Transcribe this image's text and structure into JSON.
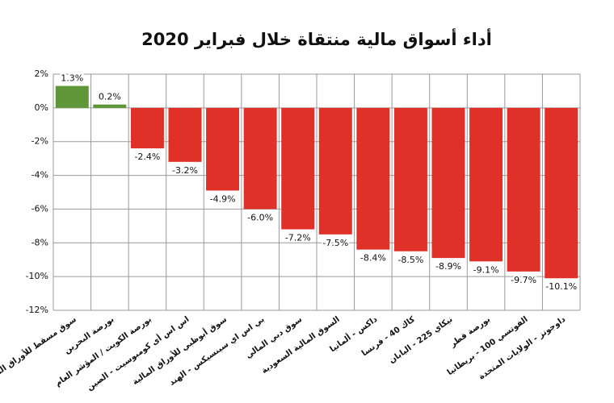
{
  "chart_data": {
    "type": "bar",
    "title": "أداء أسواق مالية منتقاة خلال فبراير 2020",
    "categories": [
      "سوق مسقط للأوراق المالية",
      "بورصة البحرين",
      "بورصة الكويت / المؤشر العام",
      "اس اس أى كومبوسيت - الصين",
      "سوق أبوظبي للأوراق المالية",
      "بي اس اي سينسيكس - الهند",
      "سوق دبي المالي",
      "السوق المالية السعودية",
      "داكس - ألمانيا",
      "كاك 40 - فرنسا",
      "نيكاي 225 - اليابان",
      "بورصة قطر",
      "الفوتسي 100 - بريطانيا",
      "داوجونز - الولايات المتحدة"
    ],
    "values": [
      1.3,
      0.2,
      -2.4,
      -3.2,
      -4.9,
      -6.0,
      -7.2,
      -7.5,
      -8.4,
      -8.5,
      -8.9,
      -9.1,
      -9.7,
      -10.1
    ],
    "value_labels": [
      "1.3%",
      "0.2%",
      "-2.4%",
      "-3.2%",
      "-4.9%",
      "-6.0%",
      "-7.2%",
      "-7.5%",
      "-8.4%",
      "-8.5%",
      "-8.9%",
      "-9.1%",
      "-9.7%",
      "-10.1%"
    ],
    "colors": [
      "#5f9637",
      "#5f9637",
      "#df3128",
      "#df3128",
      "#df3128",
      "#df3128",
      "#df3128",
      "#df3128",
      "#df3128",
      "#df3128",
      "#df3128",
      "#df3128",
      "#df3128",
      "#df3128"
    ],
    "ylim": [
      -12,
      2
    ],
    "yticks": [
      {
        "value": 2,
        "label": "2%"
      },
      {
        "value": 0,
        "label": "0%"
      },
      {
        "value": -2,
        "label": "-2%"
      },
      {
        "value": -4,
        "label": "-4%"
      },
      {
        "value": -6,
        "label": "-6%"
      },
      {
        "value": -8,
        "label": "-8%"
      },
      {
        "value": -10,
        "label": "-10%"
      },
      {
        "value": -12,
        "label": "-12%"
      }
    ],
    "grid": true
  }
}
